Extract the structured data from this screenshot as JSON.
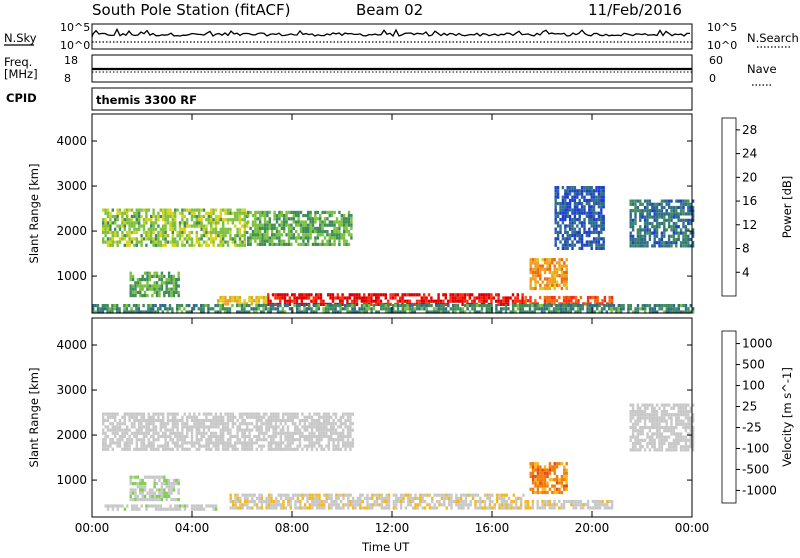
{
  "header": {
    "station": "South Pole Station (fitACF)",
    "beam": "Beam 02",
    "date": "11/Feb/2016"
  },
  "top_panels": {
    "nsky_label": "N.Sky",
    "nsky_high": "10^5",
    "nsky_low": "10^0",
    "nsearch_label": "N.Search",
    "nsearch_high": "10^5",
    "nsearch_low": "10^0",
    "freq_label_1": "Freq.",
    "freq_label_2": "[MHz]",
    "freq_high": "18",
    "freq_low": "8",
    "nave_label": "Nave",
    "nave_high": "60",
    "nave_low": "0",
    "cpid_label": "CPID",
    "cpid_value": "themis 3300 RF"
  },
  "colors": {
    "power_scale": [
      "#1b1bff",
      "#1f3fd0",
      "#2e6e88",
      "#3d8c5a",
      "#7cc13d",
      "#d6d21c",
      "#f0a020",
      "#f06a10",
      "#ff2a10",
      "#e00000"
    ],
    "velocity_scale": [
      "#ff0000",
      "#e84a0c",
      "#f07d10",
      "#f8b818",
      "#c8c8c8",
      "#c8c8c8",
      "#7cd24a",
      "#2f8a5e",
      "#2f6aa0",
      "#2a3cc8"
    ]
  },
  "chart_data": [
    {
      "type": "heatmap",
      "title": "Power",
      "xlabel": "Time UT",
      "ylabel": "Slant Range [km]",
      "x_ticks": [
        "00:00",
        "04:00",
        "08:00",
        "12:00",
        "16:00",
        "20:00",
        "00:00"
      ],
      "xlim_hours": [
        0,
        24
      ],
      "y_ticks": [
        "1000",
        "2000",
        "3000",
        "4000"
      ],
      "ylim": [
        180,
        4600
      ],
      "colorbar": {
        "label": "Power [dB]",
        "ticks": [
          "4",
          "8",
          "12",
          "16",
          "20",
          "24",
          "28"
        ],
        "range": [
          0,
          30
        ]
      },
      "regions": [
        {
          "t0": 7.0,
          "t1": 17.3,
          "r0": 380,
          "r1": 620,
          "value": 28
        },
        {
          "t0": 5.0,
          "t1": 7.0,
          "r0": 400,
          "r1": 560,
          "value": 18
        },
        {
          "t0": 17.3,
          "t1": 20.8,
          "r0": 400,
          "r1": 560,
          "value": 24
        },
        {
          "t0": 0.4,
          "t1": 6.2,
          "r0": 1650,
          "r1": 2500,
          "value": 14
        },
        {
          "t0": 6.2,
          "t1": 10.4,
          "r0": 1700,
          "r1": 2450,
          "value": 12
        },
        {
          "t0": 1.5,
          "t1": 3.5,
          "r0": 600,
          "r1": 1100,
          "value": 12
        },
        {
          "t0": 17.5,
          "t1": 19.0,
          "r0": 700,
          "r1": 1400,
          "value": 20
        },
        {
          "t0": 21.5,
          "t1": 24.0,
          "r0": 1700,
          "r1": 2700,
          "value": 8
        },
        {
          "t0": 18.5,
          "t1": 20.5,
          "r0": 1600,
          "r1": 3000,
          "value": 6
        },
        {
          "t0": 0.0,
          "t1": 24.0,
          "r0": 200,
          "r1": 380,
          "value": 10
        }
      ]
    },
    {
      "type": "heatmap",
      "title": "Velocity",
      "xlabel": "Time UT",
      "ylabel": "Slant Range [km]",
      "x_ticks": [
        "00:00",
        "04:00",
        "08:00",
        "12:00",
        "16:00",
        "20:00",
        "00:00"
      ],
      "xlim_hours": [
        0,
        24
      ],
      "y_ticks": [
        "1000",
        "2000",
        "3000",
        "4000"
      ],
      "ylim": [
        180,
        4600
      ],
      "colorbar": {
        "label": "Velocity [m s^-1]",
        "ticks": [
          "1000",
          "500",
          "100",
          "25",
          "-25",
          "-100",
          "-500",
          "-1000"
        ],
        "range": [
          -1250,
          1250
        ]
      },
      "regions": [
        {
          "t0": 5.5,
          "t1": 17.3,
          "r0": 350,
          "r1": 700,
          "value": -150
        },
        {
          "t0": 17.3,
          "t1": 20.8,
          "r0": 400,
          "r1": 560,
          "value": -150
        },
        {
          "t0": 0.4,
          "t1": 10.4,
          "r0": 1650,
          "r1": 2500,
          "value": 0
        },
        {
          "t0": 1.5,
          "t1": 3.5,
          "r0": 600,
          "r1": 1100,
          "value": 150
        },
        {
          "t0": 17.5,
          "t1": 19.0,
          "r0": 700,
          "r1": 1400,
          "value": -600
        },
        {
          "t0": 21.5,
          "t1": 24.0,
          "r0": 1700,
          "r1": 2700,
          "value": 0
        },
        {
          "t0": 0.5,
          "t1": 5.0,
          "r0": 380,
          "r1": 460,
          "value": 60
        }
      ]
    }
  ]
}
